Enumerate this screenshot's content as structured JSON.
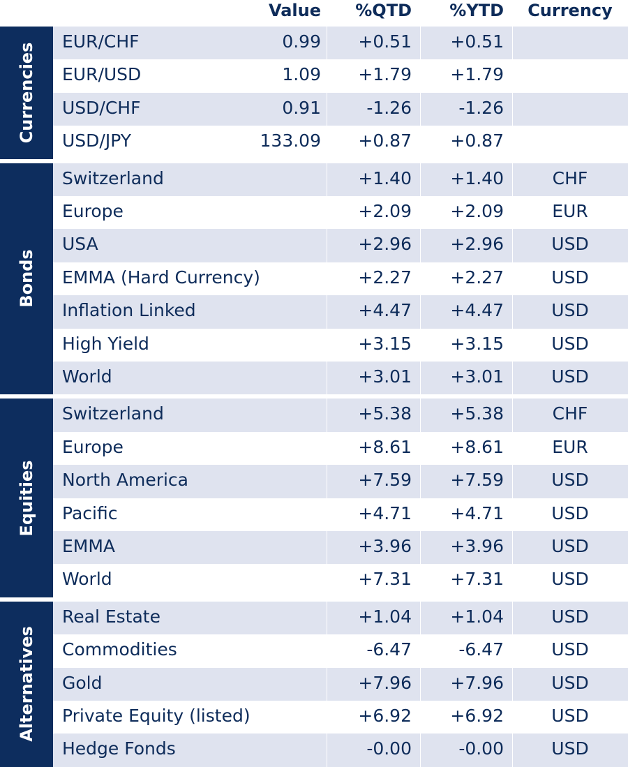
{
  "header": {
    "value": "Value",
    "qtd": "%QTD",
    "ytd": "%YTD",
    "currency": "Currency"
  },
  "groups": [
    {
      "label": "Currencies",
      "rows": [
        {
          "name": "EUR/CHF",
          "value": "0.99",
          "qtd": "+0.51",
          "ytd": "+0.51",
          "currency": ""
        },
        {
          "name": "EUR/USD",
          "value": "1.09",
          "qtd": "+1.79",
          "ytd": "+1.79",
          "currency": ""
        },
        {
          "name": "USD/CHF",
          "value": "0.91",
          "qtd": "-1.26",
          "ytd": "-1.26",
          "currency": ""
        },
        {
          "name": "USD/JPY",
          "value": "133.09",
          "qtd": "+0.87",
          "ytd": "+0.87",
          "currency": ""
        }
      ]
    },
    {
      "label": "Bonds",
      "rows": [
        {
          "name": "Switzerland",
          "value": "",
          "qtd": "+1.40",
          "ytd": "+1.40",
          "currency": "CHF"
        },
        {
          "name": "Europe",
          "value": "",
          "qtd": "+2.09",
          "ytd": "+2.09",
          "currency": "EUR"
        },
        {
          "name": "USA",
          "value": "",
          "qtd": "+2.96",
          "ytd": "+2.96",
          "currency": "USD"
        },
        {
          "name": "EMMA (Hard Currency)",
          "value": "",
          "qtd": "+2.27",
          "ytd": "+2.27",
          "currency": "USD"
        },
        {
          "name": "Inflation Linked",
          "value": "",
          "qtd": "+4.47",
          "ytd": "+4.47",
          "currency": "USD"
        },
        {
          "name": "High Yield",
          "value": "",
          "qtd": "+3.15",
          "ytd": "+3.15",
          "currency": "USD"
        },
        {
          "name": "World",
          "value": "",
          "qtd": "+3.01",
          "ytd": "+3.01",
          "currency": "USD"
        }
      ]
    },
    {
      "label": "Equities",
      "rows": [
        {
          "name": "Switzerland",
          "value": "",
          "qtd": "+5.38",
          "ytd": "+5.38",
          "currency": "CHF"
        },
        {
          "name": "Europe",
          "value": "",
          "qtd": "+8.61",
          "ytd": "+8.61",
          "currency": "EUR"
        },
        {
          "name": "North America",
          "value": "",
          "qtd": "+7.59",
          "ytd": "+7.59",
          "currency": "USD"
        },
        {
          "name": "Pacific",
          "value": "",
          "qtd": "+4.71",
          "ytd": "+4.71",
          "currency": "USD"
        },
        {
          "name": "EMMA",
          "value": "",
          "qtd": "+3.96",
          "ytd": "+3.96",
          "currency": "USD"
        },
        {
          "name": "World",
          "value": "",
          "qtd": "+7.31",
          "ytd": "+7.31",
          "currency": "USD"
        }
      ]
    },
    {
      "label": "Alternatives",
      "rows": [
        {
          "name": "Real Estate",
          "value": "",
          "qtd": "+1.04",
          "ytd": "+1.04",
          "currency": "USD"
        },
        {
          "name": "Commodities",
          "value": "",
          "qtd": "-6.47",
          "ytd": "-6.47",
          "currency": "USD"
        },
        {
          "name": "Gold",
          "value": "",
          "qtd": "+7.96",
          "ytd": "+7.96",
          "currency": "USD"
        },
        {
          "name": "Private Equity (listed)",
          "value": "",
          "qtd": "+6.92",
          "ytd": "+6.92",
          "currency": "USD"
        },
        {
          "name": "Hedge Fonds",
          "value": "",
          "qtd": "-0.00",
          "ytd": "-0.00",
          "currency": "USD"
        }
      ]
    }
  ]
}
